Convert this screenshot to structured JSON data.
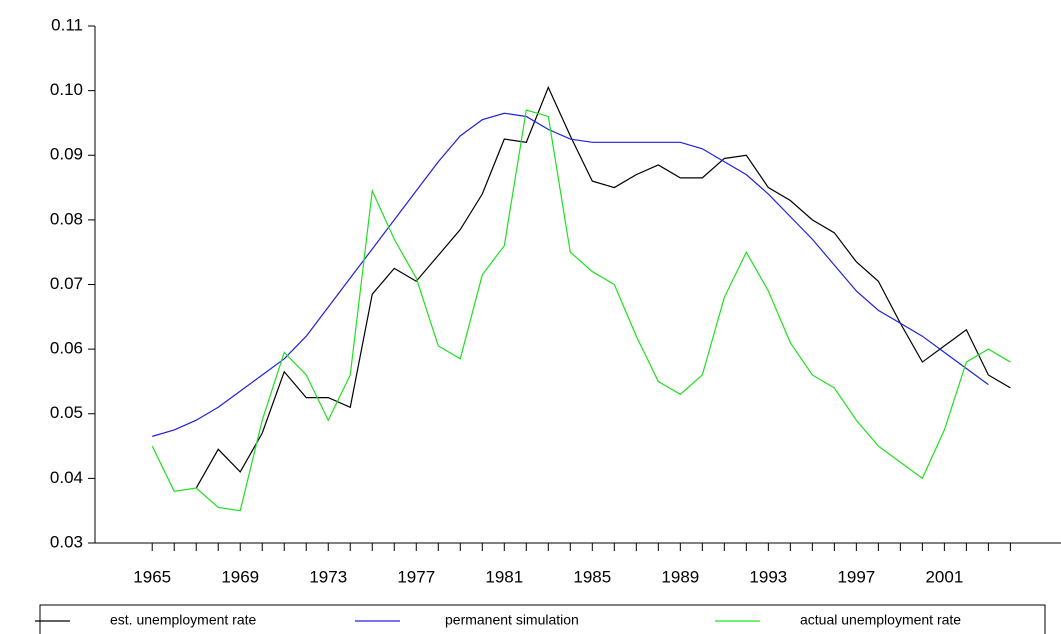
{
  "chart_data": {
    "type": "line",
    "x": [
      1965,
      1966,
      1967,
      1968,
      1969,
      1970,
      1971,
      1972,
      1973,
      1974,
      1975,
      1976,
      1977,
      1978,
      1979,
      1980,
      1981,
      1982,
      1983,
      1984,
      1985,
      1986,
      1987,
      1988,
      1989,
      1990,
      1991,
      1992,
      1993,
      1994,
      1995,
      1996,
      1997,
      1998,
      1999,
      2000,
      2001,
      2002,
      2003,
      2004
    ],
    "series": [
      {
        "name": "est. unemployment rate",
        "color": "#000000",
        "values": [
          null,
          null,
          0.0385,
          0.0445,
          0.041,
          0.047,
          0.0565,
          0.0525,
          0.0525,
          0.051,
          0.0685,
          0.0725,
          0.0705,
          0.0745,
          0.0785,
          0.084,
          0.0925,
          0.092,
          0.1005,
          0.093,
          0.086,
          0.085,
          0.087,
          0.0885,
          0.0865,
          0.0865,
          0.0895,
          0.09,
          0.085,
          0.083,
          0.08,
          0.078,
          0.0735,
          0.0705,
          0.064,
          0.058,
          0.0605,
          0.063,
          0.056,
          0.054
        ]
      },
      {
        "name": "permanent simulation",
        "color": "#2020e0",
        "values": [
          0.0465,
          0.0475,
          0.049,
          0.051,
          0.0535,
          0.056,
          0.0585,
          0.062,
          0.0665,
          0.071,
          0.0755,
          0.08,
          0.0845,
          0.089,
          0.093,
          0.0955,
          0.0965,
          0.096,
          0.094,
          0.0925,
          0.092,
          0.092,
          0.092,
          0.092,
          0.092,
          0.091,
          0.089,
          0.087,
          0.084,
          0.0805,
          0.077,
          0.073,
          0.069,
          0.066,
          0.064,
          0.062,
          0.0595,
          0.057,
          0.0545,
          null
        ]
      },
      {
        "name": "actual unemployment rate",
        "color": "#20e020",
        "values": [
          0.045,
          0.038,
          0.0385,
          0.0355,
          0.035,
          0.049,
          0.0595,
          0.056,
          0.049,
          0.056,
          0.0845,
          0.077,
          0.071,
          0.0605,
          0.0585,
          0.0715,
          0.076,
          0.097,
          0.096,
          0.075,
          0.072,
          0.07,
          0.062,
          0.055,
          0.053,
          0.056,
          0.068,
          0.075,
          0.069,
          0.061,
          0.056,
          0.054,
          0.049,
          0.045,
          0.0425,
          0.04,
          0.0475,
          0.058,
          0.06,
          0.058
        ]
      }
    ],
    "xlim": [
      1962.4,
      2006.3
    ],
    "xticks": [
      1965,
      1969,
      1973,
      1977,
      1981,
      1985,
      1989,
      1993,
      1997,
      2001
    ],
    "minor_xticks": [
      1966,
      1967,
      1968,
      1970,
      1971,
      1972,
      1974,
      1975,
      1976,
      1978,
      1979,
      1980,
      1982,
      1983,
      1984,
      1986,
      1987,
      1988,
      1990,
      1991,
      1992,
      1994,
      1995,
      1996,
      1998,
      1999,
      2000,
      2002,
      2003,
      2004
    ],
    "ylim": [
      0.03,
      0.11
    ],
    "yticks": [
      0.03,
      0.04,
      0.05,
      0.06,
      0.07,
      0.08,
      0.09,
      {
        "value": 0.1,
        "label": "0.10"
      },
      0.11
    ],
    "legend": "bottom"
  }
}
